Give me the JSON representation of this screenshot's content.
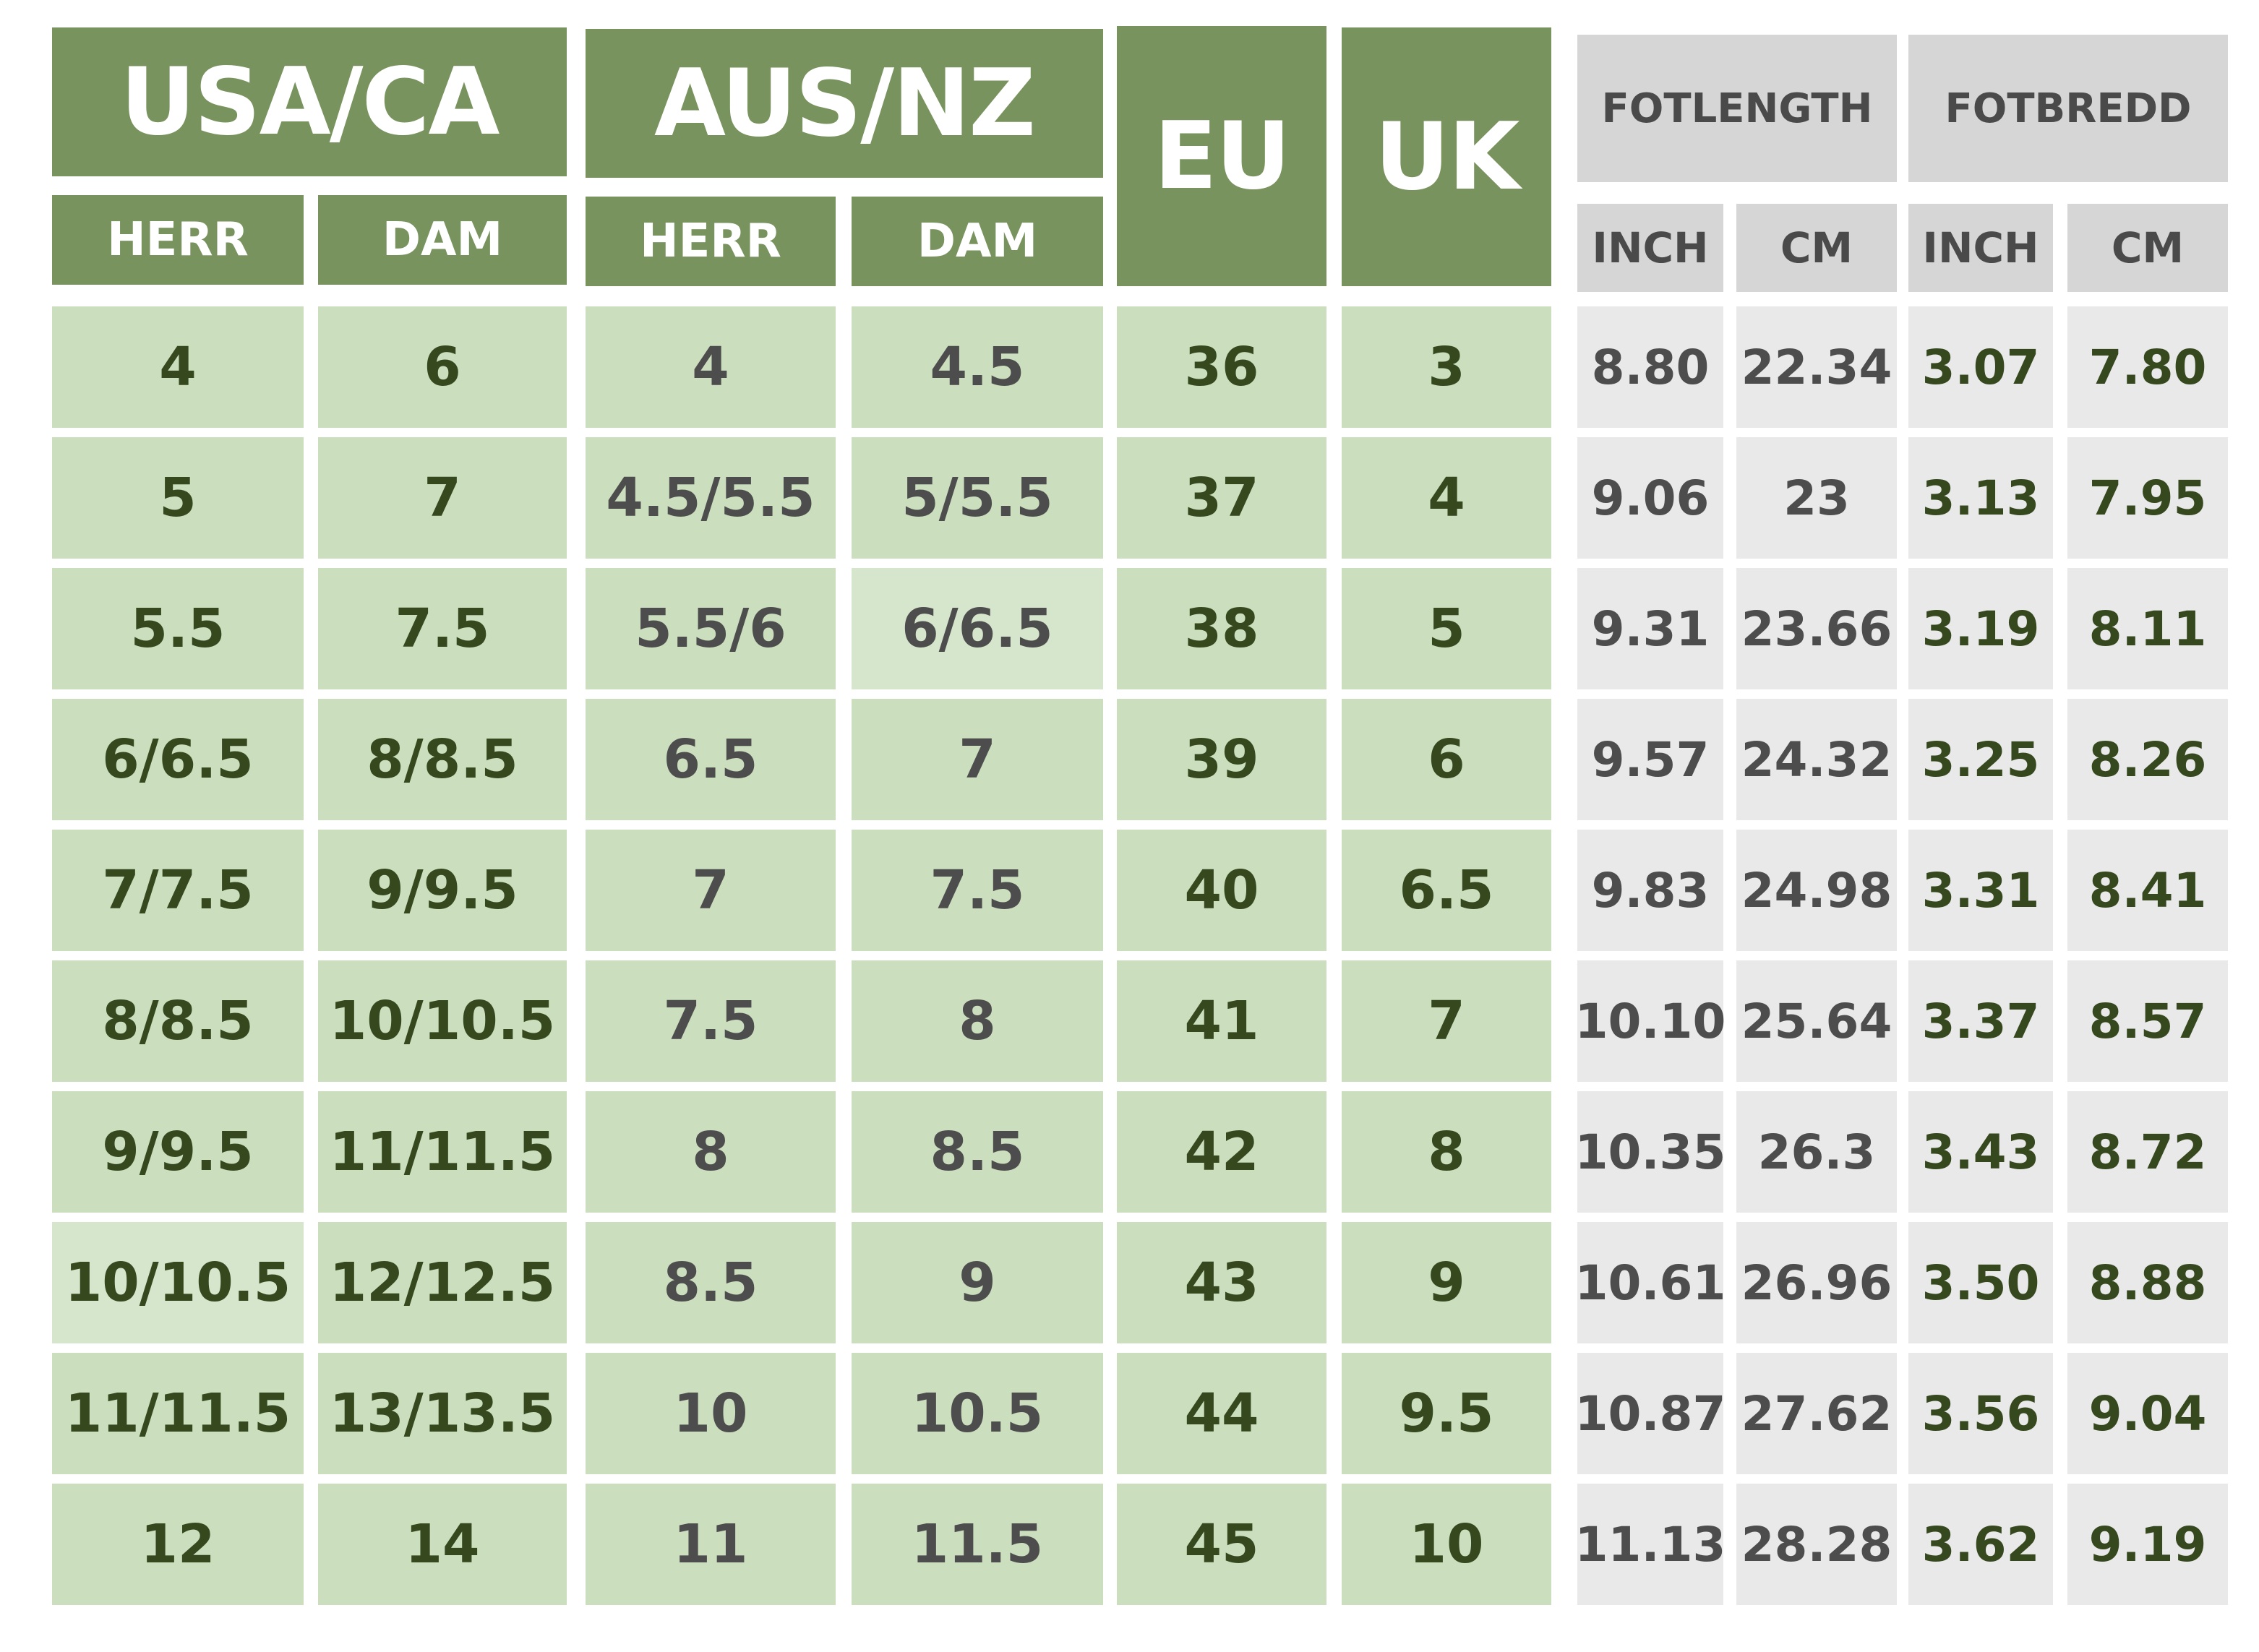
{
  "headers": {
    "usa_ca": "USA/CA",
    "aus_nz": "AUS/NZ",
    "eu": "EU",
    "uk": "UK",
    "herr": "HERR",
    "dam": "DAM",
    "fotlength": "FOTLENGTH",
    "fotbredd": "FOTBREDD",
    "inch": "INCH",
    "cm": "CM"
  },
  "colors": {
    "header_green": "#78935e",
    "cell_green": "#cbdfbf",
    "dark_green_text": "#35481e",
    "grey_header": "#d6d6d6",
    "grey_cell": "#e9e9e9"
  },
  "rows": [
    {
      "usa_herr": "4",
      "usa_dam": "6",
      "aus_herr": "4",
      "aus_dam": "4.5",
      "eu": "36",
      "uk": "3",
      "len_inch": "8.80",
      "len_cm": "22.34",
      "wid_inch": "3.07",
      "wid_cm": "7.80"
    },
    {
      "usa_herr": "5",
      "usa_dam": "7",
      "aus_herr": "4.5/5.5",
      "aus_dam": "5/5.5",
      "eu": "37",
      "uk": "4",
      "len_inch": "9.06",
      "len_cm": "23",
      "wid_inch": "3.13",
      "wid_cm": "7.95"
    },
    {
      "usa_herr": "5.5",
      "usa_dam": "7.5",
      "aus_herr": "5.5/6",
      "aus_dam": "6/6.5",
      "eu": "38",
      "uk": "5",
      "len_inch": "9.31",
      "len_cm": "23.66",
      "wid_inch": "3.19",
      "wid_cm": "8.11"
    },
    {
      "usa_herr": "6/6.5",
      "usa_dam": "8/8.5",
      "aus_herr": "6.5",
      "aus_dam": "7",
      "eu": "39",
      "uk": "6",
      "len_inch": "9.57",
      "len_cm": "24.32",
      "wid_inch": "3.25",
      "wid_cm": "8.26"
    },
    {
      "usa_herr": "7/7.5",
      "usa_dam": "9/9.5",
      "aus_herr": "7",
      "aus_dam": "7.5",
      "eu": "40",
      "uk": "6.5",
      "len_inch": "9.83",
      "len_cm": "24.98",
      "wid_inch": "3.31",
      "wid_cm": "8.41"
    },
    {
      "usa_herr": "8/8.5",
      "usa_dam": "10/10.5",
      "aus_herr": "7.5",
      "aus_dam": "8",
      "eu": "41",
      "uk": "7",
      "len_inch": "10.10",
      "len_cm": "25.64",
      "wid_inch": "3.37",
      "wid_cm": "8.57"
    },
    {
      "usa_herr": "9/9.5",
      "usa_dam": "11/11.5",
      "aus_herr": "8",
      "aus_dam": "8.5",
      "eu": "42",
      "uk": "8",
      "len_inch": "10.35",
      "len_cm": "26.3",
      "wid_inch": "3.43",
      "wid_cm": "8.72"
    },
    {
      "usa_herr": "10/10.5",
      "usa_dam": "12/12.5",
      "aus_herr": "8.5",
      "aus_dam": "9",
      "eu": "43",
      "uk": "9",
      "len_inch": "10.61",
      "len_cm": "26.96",
      "wid_inch": "3.50",
      "wid_cm": "8.88"
    },
    {
      "usa_herr": "11/11.5",
      "usa_dam": "13/13.5",
      "aus_herr": "10",
      "aus_dam": "10.5",
      "eu": "44",
      "uk": "9.5",
      "len_inch": "10.87",
      "len_cm": "27.62",
      "wid_inch": "3.56",
      "wid_cm": "9.04"
    },
    {
      "usa_herr": "12",
      "usa_dam": "14",
      "aus_herr": "11",
      "aus_dam": "11.5",
      "eu": "45",
      "uk": "10",
      "len_inch": "11.13",
      "len_cm": "28.28",
      "wid_inch": "3.62",
      "wid_cm": "9.19"
    }
  ]
}
